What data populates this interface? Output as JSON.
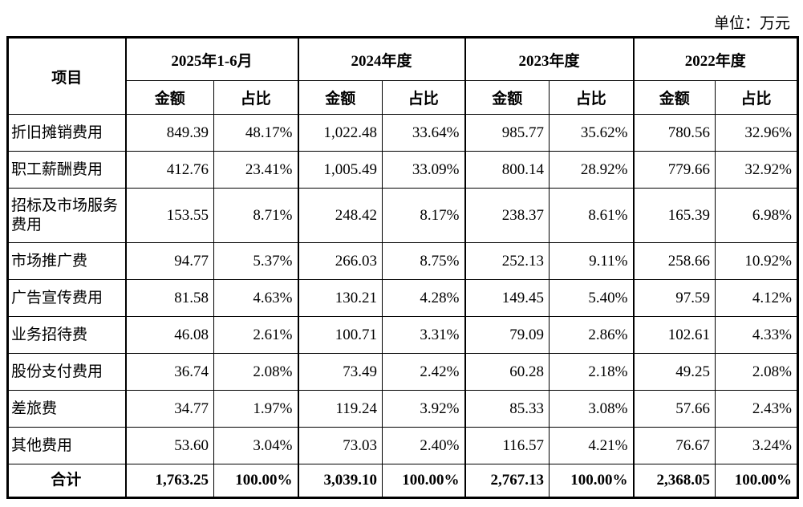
{
  "unit_label": "单位：万元",
  "table": {
    "item_header": "项目",
    "amount_header": "金额",
    "ratio_header": "占比",
    "periods": [
      "2025年1-6月",
      "2024年度",
      "2023年度",
      "2022年度"
    ],
    "rows": [
      {
        "item": "折旧摊销费用",
        "values": [
          "849.39",
          "48.17%",
          "1,022.48",
          "33.64%",
          "985.77",
          "35.62%",
          "780.56",
          "32.96%"
        ]
      },
      {
        "item": "职工薪酬费用",
        "values": [
          "412.76",
          "23.41%",
          "1,005.49",
          "33.09%",
          "800.14",
          "28.92%",
          "779.66",
          "32.92%"
        ]
      },
      {
        "item": "招标及市场服务费用",
        "values": [
          "153.55",
          "8.71%",
          "248.42",
          "8.17%",
          "238.37",
          "8.61%",
          "165.39",
          "6.98%"
        ]
      },
      {
        "item": "市场推广费",
        "values": [
          "94.77",
          "5.37%",
          "266.03",
          "8.75%",
          "252.13",
          "9.11%",
          "258.66",
          "10.92%"
        ]
      },
      {
        "item": "广告宣传费用",
        "values": [
          "81.58",
          "4.63%",
          "130.21",
          "4.28%",
          "149.45",
          "5.40%",
          "97.59",
          "4.12%"
        ]
      },
      {
        "item": "业务招待费",
        "values": [
          "46.08",
          "2.61%",
          "100.71",
          "3.31%",
          "79.09",
          "2.86%",
          "102.61",
          "4.33%"
        ]
      },
      {
        "item": "股份支付费用",
        "values": [
          "36.74",
          "2.08%",
          "73.49",
          "2.42%",
          "60.28",
          "2.18%",
          "49.25",
          "2.08%"
        ]
      },
      {
        "item": "差旅费",
        "values": [
          "34.77",
          "1.97%",
          "119.24",
          "3.92%",
          "85.33",
          "3.08%",
          "57.66",
          "2.43%"
        ]
      },
      {
        "item": "其他费用",
        "values": [
          "53.60",
          "3.04%",
          "73.03",
          "2.40%",
          "116.57",
          "4.21%",
          "76.67",
          "3.24%"
        ]
      }
    ],
    "total": {
      "item": "合计",
      "values": [
        "1,763.25",
        "100.00%",
        "3,039.10",
        "100.00%",
        "2,767.13",
        "100.00%",
        "2,368.05",
        "100.00%"
      ]
    }
  }
}
